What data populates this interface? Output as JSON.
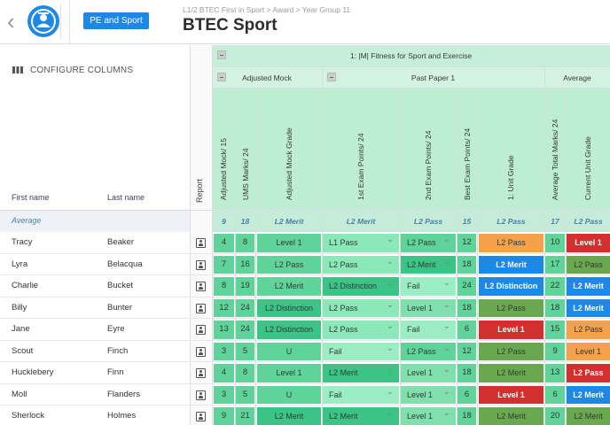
{
  "header": {
    "department_button": "PE and Sport",
    "breadcrumb": "L1/2 BTEC First in Sport > Award > Year Group 11",
    "title": "BTEC Sport"
  },
  "sidebar": {
    "configure_label": "CONFIGURE COLUMNS"
  },
  "table": {
    "group_header": "1: |M| Fitness for Sport and Exercise",
    "subgroups": [
      "Adjusted Mock",
      "Past Paper 1",
      "Average"
    ],
    "name_headers": [
      "First name",
      "Last name"
    ],
    "report_header": "Report",
    "columns": [
      "Adjusted Mock/ 15",
      "UMS Marks/ 24",
      "Adjusted Mock Grade",
      "1st Exam Points/ 24",
      "2nd Exam Points/ 24",
      "Best Exam Points/ 24",
      "1: Unit Grade",
      "Average Total Marks/ 24",
      "Current Unit Grade"
    ],
    "average": {
      "label": "Average",
      "values": [
        "9",
        "18",
        "L2 Merit",
        "L2 Merit",
        "L2 Pass",
        "15",
        "L2 Pass",
        "17",
        "L2 Pass"
      ]
    },
    "rows": [
      {
        "first": "Tracy",
        "last": "Beaker",
        "cells": [
          "4",
          "8",
          "Level 1",
          "L1 Pass",
          "L2 Pass",
          "12",
          "L2 Pass",
          "10",
          "Level 1"
        ],
        "colors": [
          "#5fd39a",
          "#5fd39a",
          "#5fd39a",
          "#8be8b8",
          "#5fd39a",
          "#5fd39a",
          "#f5a04a",
          "#5fd39a",
          "#d32f2f"
        ]
      },
      {
        "first": "Lyra",
        "last": "Belacqua",
        "cells": [
          "7",
          "16",
          "L2 Pass",
          "L2 Pass",
          "L2 Merit",
          "18",
          "L2 Merit",
          "17",
          "L2 Pass"
        ],
        "colors": [
          "#5fd39a",
          "#5fd39a",
          "#5fd39a",
          "#8be8b8",
          "#3cc486",
          "#5fd39a",
          "#1e88e5",
          "#5fd39a",
          "#6aa84f"
        ]
      },
      {
        "first": "Charlie",
        "last": "Bucket",
        "cells": [
          "8",
          "19",
          "L2 Merit",
          "L2 Distinction",
          "Fail",
          "24",
          "L2 Distinction",
          "22",
          "L2 Merit"
        ],
        "colors": [
          "#5fd39a",
          "#5fd39a",
          "#5fd39a",
          "#3cc486",
          "#9beec4",
          "#5fd39a",
          "#1e88e5",
          "#5fd39a",
          "#1e88e5"
        ]
      },
      {
        "first": "Billy",
        "last": "Bunter",
        "cells": [
          "12",
          "24",
          "L2 Distinction",
          "L2 Pass",
          "Level 1",
          "18",
          "L2 Pass",
          "18",
          "L2 Merit"
        ],
        "colors": [
          "#5fd39a",
          "#5fd39a",
          "#3cc486",
          "#8be8b8",
          "#7fe0ad",
          "#5fd39a",
          "#6aa84f",
          "#5fd39a",
          "#1e88e5"
        ]
      },
      {
        "first": "Jane",
        "last": "Eyre",
        "cells": [
          "13",
          "24",
          "L2 Distinction",
          "L2 Pass",
          "Fail",
          "6",
          "Level 1",
          "15",
          "L2 Pass"
        ],
        "colors": [
          "#5fd39a",
          "#5fd39a",
          "#3cc486",
          "#8be8b8",
          "#9beec4",
          "#5fd39a",
          "#d32f2f",
          "#5fd39a",
          "#f5a04a"
        ]
      },
      {
        "first": "Scout",
        "last": "Finch",
        "cells": [
          "3",
          "5",
          "U",
          "Fail",
          "L2 Pass",
          "12",
          "L2 Pass",
          "9",
          "Level 1"
        ],
        "colors": [
          "#5fd39a",
          "#5fd39a",
          "#5fd39a",
          "#9beec4",
          "#5fd39a",
          "#5fd39a",
          "#6aa84f",
          "#5fd39a",
          "#f5a04a"
        ]
      },
      {
        "first": "Hucklebery",
        "last": "Finn",
        "cells": [
          "4",
          "8",
          "Level 1",
          "L2 Merit",
          "Level 1",
          "18",
          "L2 Merit",
          "13",
          "L2 Pass"
        ],
        "colors": [
          "#5fd39a",
          "#5fd39a",
          "#5fd39a",
          "#3cc486",
          "#7fe0ad",
          "#5fd39a",
          "#6aa84f",
          "#5fd39a",
          "#d32f2f"
        ]
      },
      {
        "first": "Moll",
        "last": "Flanders",
        "cells": [
          "3",
          "5",
          "U",
          "Fail",
          "Level 1",
          "6",
          "Level 1",
          "6",
          "L2 Merit"
        ],
        "colors": [
          "#5fd39a",
          "#5fd39a",
          "#5fd39a",
          "#9beec4",
          "#7fe0ad",
          "#5fd39a",
          "#d32f2f",
          "#5fd39a",
          "#1e88e5"
        ]
      },
      {
        "first": "Sherlock",
        "last": "Holmes",
        "cells": [
          "9",
          "21",
          "L2 Merit",
          "L2 Merit",
          "Level 1",
          "18",
          "L2 Merit",
          "20",
          "L2 Merit"
        ],
        "colors": [
          "#5fd39a",
          "#5fd39a",
          "#3cc486",
          "#3cc486",
          "#7fe0ad",
          "#5fd39a",
          "#6aa84f",
          "#5fd39a",
          "#6aa84f"
        ]
      }
    ]
  }
}
